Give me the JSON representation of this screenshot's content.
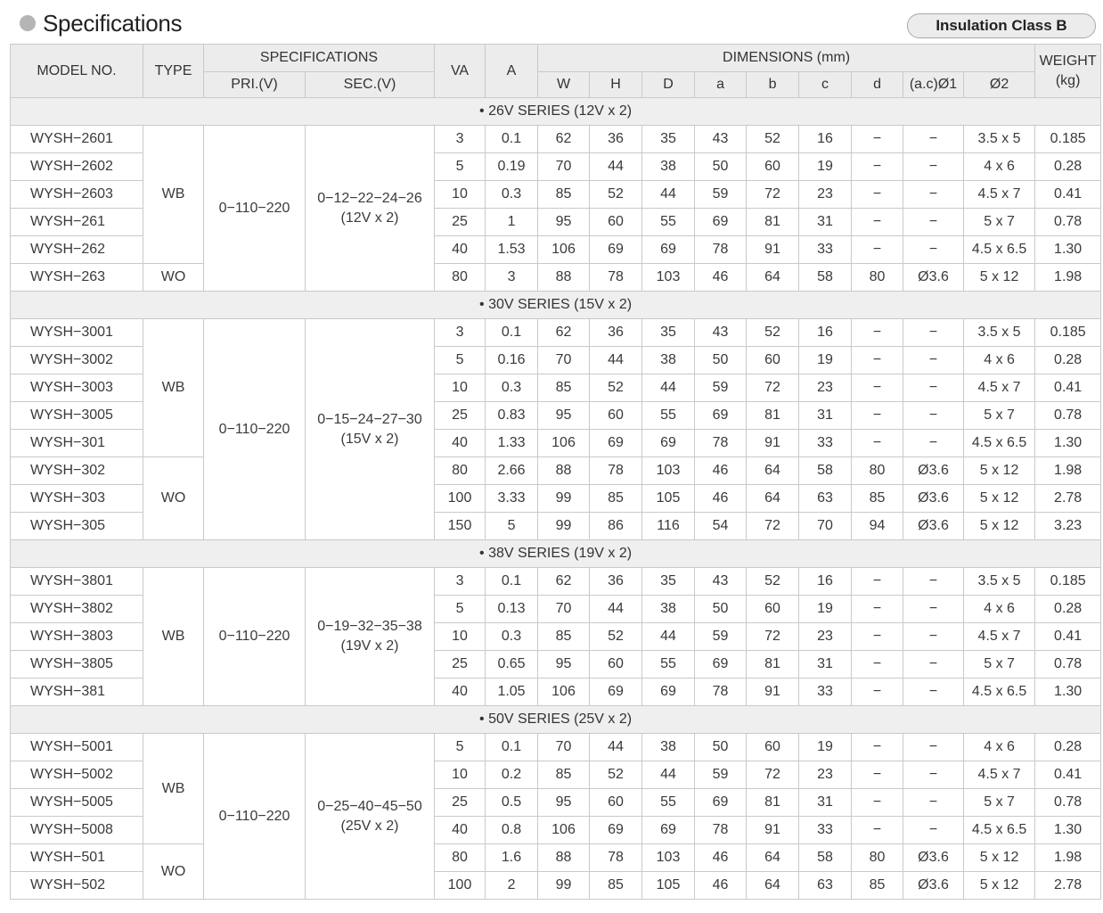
{
  "header": {
    "title": "Specifications",
    "badge": "Insulation Class B"
  },
  "table": {
    "headers": {
      "model_no": "MODEL NO.",
      "type": "TYPE",
      "specifications": "SPECIFICATIONS",
      "pri": "PRI.(V)",
      "sec": "SEC.(V)",
      "va": "VA",
      "a": "A",
      "dimensions": "DIMENSIONS (mm)",
      "w": "W",
      "h": "H",
      "d_upper": "D",
      "a_dim": "a",
      "b": "b",
      "c": "c",
      "d_lower": "d",
      "ac_phi1": "(a.c)Ø1",
      "phi2": "Ø2",
      "weight": "WEIGHT\n(kg)"
    },
    "series": [
      {
        "label": "• 26V SERIES (12V x 2)",
        "pri": "0−110−220",
        "sec": "0−12−22−24−26\n(12V x 2)",
        "type_groups": [
          {
            "type": "WB",
            "rows": 5
          },
          {
            "type": "WO",
            "rows": 1
          }
        ],
        "rows": [
          [
            "WYSH−2601",
            "3",
            "0.1",
            "62",
            "36",
            "35",
            "43",
            "52",
            "16",
            "−",
            "−",
            "3.5 x 5",
            "0.185"
          ],
          [
            "WYSH−2602",
            "5",
            "0.19",
            "70",
            "44",
            "38",
            "50",
            "60",
            "19",
            "−",
            "−",
            "4 x 6",
            "0.28"
          ],
          [
            "WYSH−2603",
            "10",
            "0.3",
            "85",
            "52",
            "44",
            "59",
            "72",
            "23",
            "−",
            "−",
            "4.5 x 7",
            "0.41"
          ],
          [
            "WYSH−261",
            "25",
            "1",
            "95",
            "60",
            "55",
            "69",
            "81",
            "31",
            "−",
            "−",
            "5 x 7",
            "0.78"
          ],
          [
            "WYSH−262",
            "40",
            "1.53",
            "106",
            "69",
            "69",
            "78",
            "91",
            "33",
            "−",
            "−",
            "4.5 x 6.5",
            "1.30"
          ],
          [
            "WYSH−263",
            "80",
            "3",
            "88",
            "78",
            "103",
            "46",
            "64",
            "58",
            "80",
            "Ø3.6",
            "5 x 12",
            "1.98"
          ]
        ]
      },
      {
        "label": "• 30V SERIES (15V x 2)",
        "pri": "0−110−220",
        "sec": "0−15−24−27−30\n(15V x 2)",
        "type_groups": [
          {
            "type": "WB",
            "rows": 5
          },
          {
            "type": "WO",
            "rows": 3
          }
        ],
        "rows": [
          [
            "WYSH−3001",
            "3",
            "0.1",
            "62",
            "36",
            "35",
            "43",
            "52",
            "16",
            "−",
            "−",
            "3.5 x 5",
            "0.185"
          ],
          [
            "WYSH−3002",
            "5",
            "0.16",
            "70",
            "44",
            "38",
            "50",
            "60",
            "19",
            "−",
            "−",
            "4 x 6",
            "0.28"
          ],
          [
            "WYSH−3003",
            "10",
            "0.3",
            "85",
            "52",
            "44",
            "59",
            "72",
            "23",
            "−",
            "−",
            "4.5 x 7",
            "0.41"
          ],
          [
            "WYSH−3005",
            "25",
            "0.83",
            "95",
            "60",
            "55",
            "69",
            "81",
            "31",
            "−",
            "−",
            "5 x 7",
            "0.78"
          ],
          [
            "WYSH−301",
            "40",
            "1.33",
            "106",
            "69",
            "69",
            "78",
            "91",
            "33",
            "−",
            "−",
            "4.5 x 6.5",
            "1.30"
          ],
          [
            "WYSH−302",
            "80",
            "2.66",
            "88",
            "78",
            "103",
            "46",
            "64",
            "58",
            "80",
            "Ø3.6",
            "5 x 12",
            "1.98"
          ],
          [
            "WYSH−303",
            "100",
            "3.33",
            "99",
            "85",
            "105",
            "46",
            "64",
            "63",
            "85",
            "Ø3.6",
            "5 x 12",
            "2.78"
          ],
          [
            "WYSH−305",
            "150",
            "5",
            "99",
            "86",
            "116",
            "54",
            "72",
            "70",
            "94",
            "Ø3.6",
            "5  x 12",
            "3.23"
          ]
        ]
      },
      {
        "label": "• 38V SERIES (19V x 2)",
        "pri": "0−110−220",
        "sec": "0−19−32−35−38\n(19V x 2)",
        "type_groups": [
          {
            "type": "WB",
            "rows": 5
          }
        ],
        "rows": [
          [
            "WYSH−3801",
            "3",
            "0.1",
            "62",
            "36",
            "35",
            "43",
            "52",
            "16",
            "−",
            "−",
            "3.5 x 5",
            "0.185"
          ],
          [
            "WYSH−3802",
            "5",
            "0.13",
            "70",
            "44",
            "38",
            "50",
            "60",
            "19",
            "−",
            "−",
            "4 x 6",
            "0.28"
          ],
          [
            "WYSH−3803",
            "10",
            "0.3",
            "85",
            "52",
            "44",
            "59",
            "72",
            "23",
            "−",
            "−",
            "4.5 x 7",
            "0.41"
          ],
          [
            "WYSH−3805",
            "25",
            "0.65",
            "95",
            "60",
            "55",
            "69",
            "81",
            "31",
            "−",
            "−",
            "5 x 7",
            "0.78"
          ],
          [
            "WYSH−381",
            "40",
            "1.05",
            "106",
            "69",
            "69",
            "78",
            "91",
            "33",
            "−",
            "−",
            "4.5 x 6.5",
            "1.30"
          ]
        ]
      },
      {
        "label": "• 50V SERIES (25V x 2)",
        "pri": "0−110−220",
        "sec": "0−25−40−45−50\n(25V x 2)",
        "type_groups": [
          {
            "type": "WB",
            "rows": 4
          },
          {
            "type": "WO",
            "rows": 2
          }
        ],
        "rows": [
          [
            "WYSH−5001",
            "5",
            "0.1",
            "70",
            "44",
            "38",
            "50",
            "60",
            "19",
            "−",
            "−",
            "4 x 6",
            "0.28"
          ],
          [
            "WYSH−5002",
            "10",
            "0.2",
            "85",
            "52",
            "44",
            "59",
            "72",
            "23",
            "−",
            "−",
            "4.5 x 7",
            "0.41"
          ],
          [
            "WYSH−5005",
            "25",
            "0.5",
            "95",
            "60",
            "55",
            "69",
            "81",
            "31",
            "−",
            "−",
            "5 x 7",
            "0.78"
          ],
          [
            "WYSH−5008",
            "40",
            "0.8",
            "106",
            "69",
            "69",
            "78",
            "91",
            "33",
            "−",
            "−",
            "4.5 x 6.5",
            "1.30"
          ],
          [
            "WYSH−501",
            "80",
            "1.6",
            "88",
            "78",
            "103",
            "46",
            "64",
            "58",
            "80",
            "Ø3.6",
            "5 x 12",
            "1.98"
          ],
          [
            "WYSH−502",
            "100",
            "2",
            "99",
            "85",
            "105",
            "46",
            "64",
            "63",
            "85",
            "Ø3.6",
            "5 x 12",
            "2.78"
          ]
        ]
      }
    ]
  }
}
